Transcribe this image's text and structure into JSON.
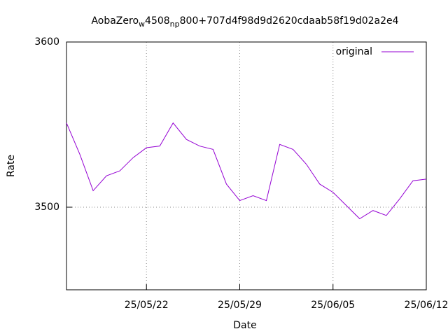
{
  "chart_data": {
    "type": "line",
    "title": [
      "AobaZero",
      "w",
      "4508",
      "np",
      "800+707d4f98d9d2620cdaab58f19d02a2e4"
    ],
    "x_label": "Date",
    "y_label": "Rate",
    "x": [
      "25/05/16",
      "25/05/17",
      "25/05/18",
      "25/05/19",
      "25/05/20",
      "25/05/21",
      "25/05/22",
      "25/05/23",
      "25/05/24",
      "25/05/25",
      "25/05/26",
      "25/05/27",
      "25/05/28",
      "25/05/29",
      "25/05/30",
      "25/05/31",
      "25/06/01",
      "25/06/02",
      "25/06/03",
      "25/06/04",
      "25/06/05",
      "25/06/06",
      "25/06/07",
      "25/06/08",
      "25/06/09",
      "25/06/10",
      "25/06/11",
      "25/06/12"
    ],
    "series": [
      {
        "name": "original",
        "color": "#9400d3",
        "values": [
          3551,
          3532,
          3510,
          3519,
          3522,
          3530,
          3536,
          3537,
          3551,
          3541,
          3537,
          3535,
          3514,
          3504,
          3507,
          3504,
          3538,
          3535,
          3526,
          3514,
          3509,
          3501,
          3493,
          3498,
          3495,
          3505,
          3516,
          3517
        ]
      }
    ],
    "xlim": [
      "25/05/16",
      "25/06/12"
    ],
    "xticks": [
      "25/05/22",
      "25/05/29",
      "25/06/05",
      "25/06/12"
    ],
    "ylim": [
      3450,
      3600
    ],
    "yticks": [
      3500,
      3600
    ],
    "grid": true,
    "legend": "top-right"
  }
}
